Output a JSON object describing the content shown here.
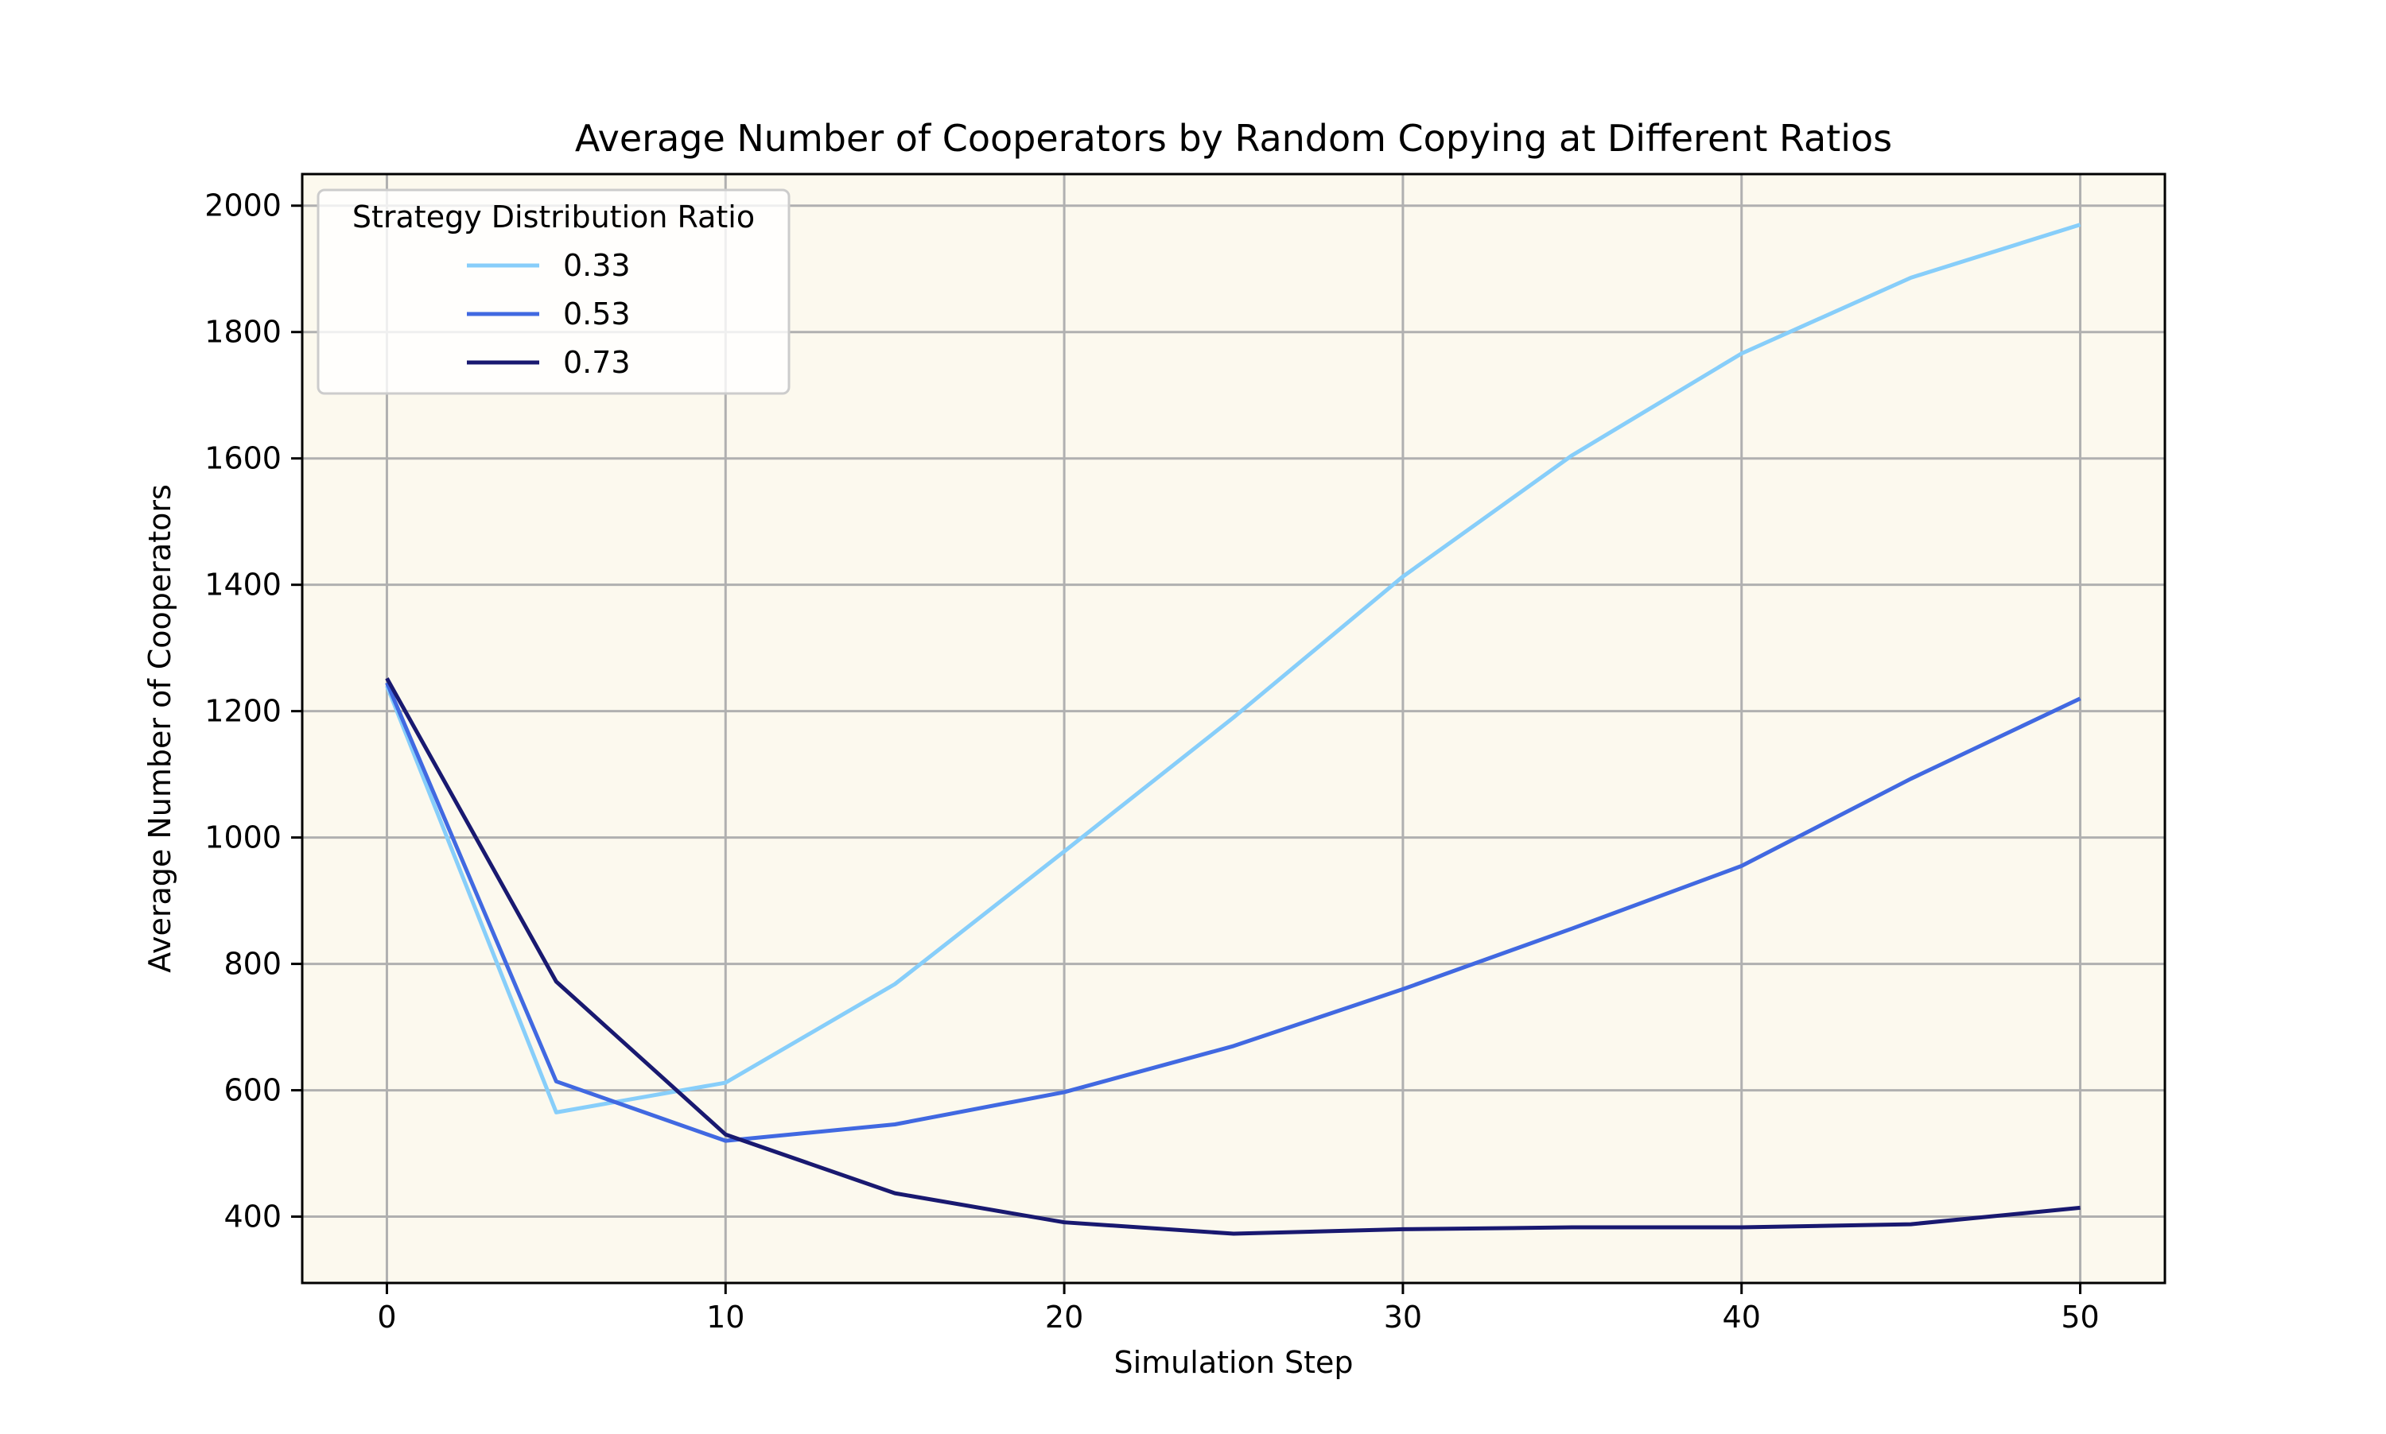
{
  "chart_data": {
    "type": "line",
    "title": "Average Number of Cooperators by Random Copying at Different Ratios",
    "xlabel": "Simulation Step",
    "ylabel": "Average Number of Cooperators",
    "x": [
      0,
      5,
      10,
      15,
      20,
      25,
      30,
      35,
      40,
      45,
      50
    ],
    "xlim": [
      -2.5,
      52.5
    ],
    "ylim": [
      295,
      2050
    ],
    "xticks": [
      0,
      10,
      20,
      30,
      40,
      50
    ],
    "yticks": [
      400,
      600,
      800,
      1000,
      1200,
      1400,
      1600,
      1800,
      2000
    ],
    "grid": true,
    "background_color": "#fcf9ee",
    "legend": {
      "title": "Strategy Distribution Ratio",
      "position": "top-left"
    },
    "series": [
      {
        "name": "0.33",
        "color": "#87cefa",
        "values": [
          1240,
          565,
          612,
          768,
          978,
          1190,
          1413,
          1605,
          1766,
          1886,
          1970
        ]
      },
      {
        "name": "0.53",
        "color": "#4169e1",
        "values": [
          1245,
          614,
          520,
          546,
          597,
          670,
          760,
          856,
          955,
          1093,
          1220
        ]
      },
      {
        "name": "0.73",
        "color": "#191970",
        "values": [
          1252,
          772,
          530,
          437,
          391,
          373,
          380,
          383,
          383,
          388,
          414
        ]
      }
    ]
  }
}
